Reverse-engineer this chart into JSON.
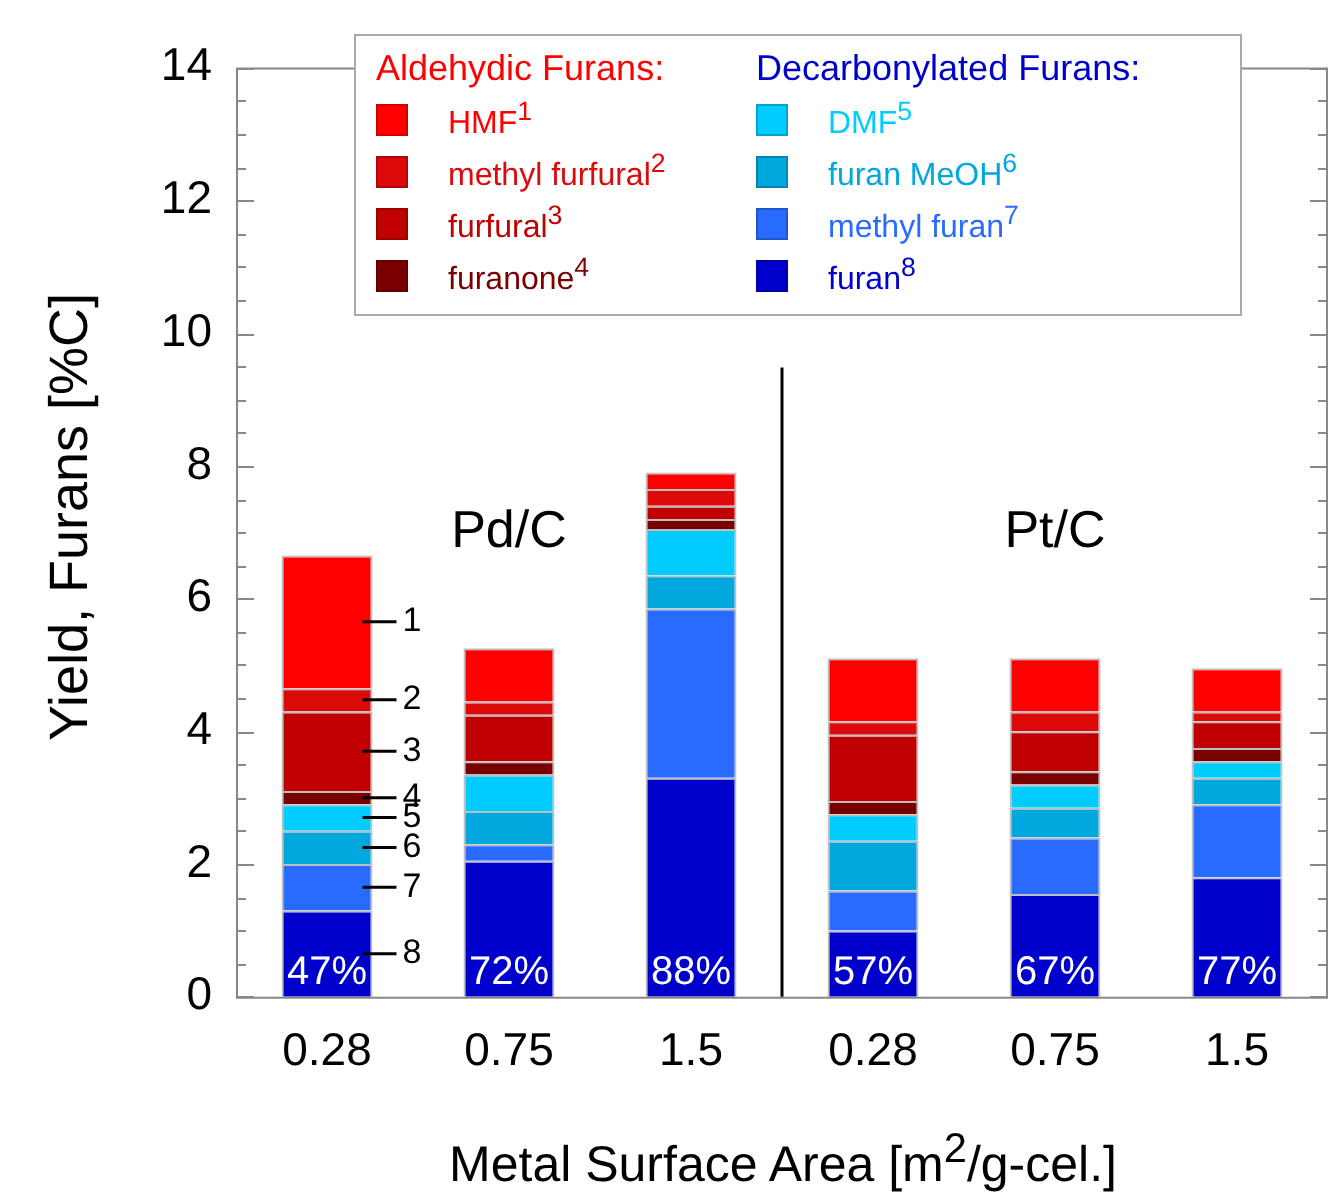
{
  "chart_data": {
    "type": "bar",
    "stacked": true,
    "xlabel": "Metal Surface Area [m$^{2}$/g-cel.]",
    "ylabel": "Yield, Furans [%C]",
    "categories": [
      "0.28",
      "0.75",
      "1.5",
      "0.28",
      "0.75",
      "1.5"
    ],
    "series": [
      {
        "name": "furan$^{8}$",
        "color": "#0000cc",
        "values": [
          1.3,
          2.05,
          3.3,
          1.0,
          1.55,
          1.8
        ]
      },
      {
        "name": "methyl furan$^{7}$",
        "color": "#2a6bff",
        "values": [
          0.7,
          0.25,
          2.55,
          0.6,
          0.85,
          1.1
        ]
      },
      {
        "name": "furan MeOH$^{6}$",
        "color": "#00a8dd",
        "values": [
          0.5,
          0.5,
          0.5,
          0.75,
          0.45,
          0.4
        ]
      },
      {
        "name": "DMF$^{5}$",
        "color": "#00ccff",
        "values": [
          0.4,
          0.55,
          0.7,
          0.4,
          0.35,
          0.25
        ]
      },
      {
        "name": "furanone$^{4}$",
        "color": "#7a0000",
        "values": [
          0.2,
          0.2,
          0.15,
          0.2,
          0.2,
          0.2
        ]
      },
      {
        "name": "furfural$^{3}$",
        "color": "#c00000",
        "values": [
          1.2,
          0.7,
          0.2,
          1.0,
          0.6,
          0.4
        ]
      },
      {
        "name": "methyl furfural$^{2}$",
        "color": "#dd0a0a",
        "values": [
          0.35,
          0.2,
          0.25,
          0.2,
          0.3,
          0.15
        ]
      },
      {
        "name": "HMF$^{1}$",
        "color": "#ff0000",
        "values": [
          2.0,
          0.8,
          0.25,
          0.95,
          0.8,
          0.65
        ]
      }
    ],
    "ylim": [
      0,
      14
    ],
    "yticks": [
      0,
      {
        "value": 0.5,
        "label": null
      },
      {
        "value": 1,
        "label": null
      },
      {
        "value": 1.5,
        "label": null
      },
      2,
      {
        "value": 2.5,
        "label": null
      },
      {
        "value": 3,
        "label": null
      },
      {
        "value": 3.5,
        "label": null
      },
      4,
      {
        "value": 4.5,
        "label": null
      },
      {
        "value": 5,
        "label": null
      },
      {
        "value": 5.5,
        "label": null
      },
      6,
      {
        "value": 6.5,
        "label": null
      },
      {
        "value": 7,
        "label": null
      },
      {
        "value": 7.5,
        "label": null
      },
      8,
      {
        "value": 8.5,
        "label": null
      },
      {
        "value": 9,
        "label": null
      },
      {
        "value": 9.5,
        "label": null
      },
      10,
      {
        "value": 10.5,
        "label": null
      },
      {
        "value": 11,
        "label": null
      },
      {
        "value": 11.5,
        "label": null
      },
      12,
      {
        "value": 12.5,
        "label": null
      },
      {
        "value": 13,
        "label": null
      },
      {
        "value": 13.5,
        "label": null
      },
      14
    ],
    "grid": false,
    "legend": "top",
    "annotations": [
      "Aldehydic Furans:",
      "Decarbonylated Furans:",
      "Pd/C",
      "Pt/C",
      "1",
      "2",
      "3",
      "4",
      "5",
      "6",
      "7",
      "8",
      "47%",
      "72%",
      "88%",
      "57%",
      "67%",
      "77%"
    ]
  }
}
